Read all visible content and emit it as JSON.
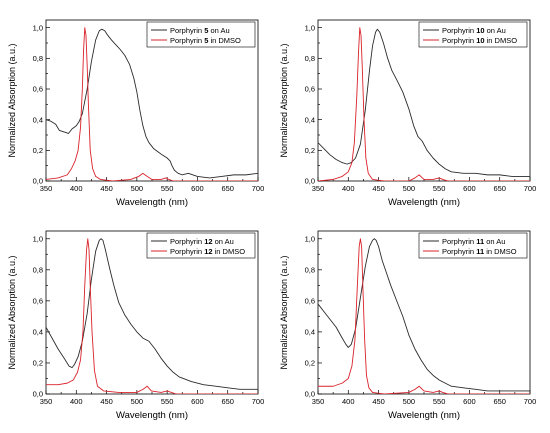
{
  "colors": {
    "au": "#2b2b2b",
    "dmso": "#d9232a",
    "axis": "#000000"
  },
  "chart_data": [
    {
      "type": "line",
      "xlabel": "Wavelength (nm)",
      "ylabel": "Normalized Absorption (a.u.)",
      "xlim": [
        350,
        700
      ],
      "ylim": [
        0.0,
        1.05
      ],
      "xticks": [
        "350",
        "400",
        "450",
        "500",
        "550",
        "600",
        "650",
        "700"
      ],
      "yticks": [
        "0,0",
        "0,2",
        "0,4",
        "0,6",
        "0,8",
        "1,0"
      ],
      "grid": false,
      "legend_position": "top-right",
      "series": [
        {
          "name": "Porphyrin 5 on Au",
          "legend_prefix": "Porphyrin ",
          "legend_number": "5",
          "legend_suffix": " on Au",
          "color": "#2b2b2b",
          "x": [
            350,
            358,
            366,
            372,
            380,
            387,
            393,
            400,
            405,
            410,
            418,
            425,
            432,
            438,
            442,
            447,
            452,
            458,
            465,
            472,
            480,
            488,
            495,
            500,
            505,
            510,
            515,
            520,
            528,
            535,
            542,
            550,
            555,
            558,
            562,
            568,
            575,
            585,
            600,
            620,
            640,
            660,
            680,
            700
          ],
          "y": [
            0.4,
            0.39,
            0.37,
            0.33,
            0.32,
            0.31,
            0.34,
            0.36,
            0.39,
            0.44,
            0.6,
            0.78,
            0.92,
            0.98,
            0.99,
            0.98,
            0.95,
            0.92,
            0.89,
            0.86,
            0.82,
            0.76,
            0.67,
            0.58,
            0.46,
            0.36,
            0.29,
            0.25,
            0.21,
            0.19,
            0.17,
            0.15,
            0.13,
            0.1,
            0.07,
            0.05,
            0.04,
            0.05,
            0.03,
            0.02,
            0.03,
            0.04,
            0.04,
            0.05
          ]
        },
        {
          "name": "Porphyrin 5 in DMSO",
          "legend_prefix": "Porphyrin ",
          "legend_number": "5",
          "legend_suffix": " in DMSO",
          "color": "#d9232a",
          "x": [
            350,
            370,
            385,
            392,
            398,
            403,
            407,
            410,
            412,
            414,
            416,
            418,
            420,
            423,
            427,
            432,
            440,
            460,
            490,
            503,
            510,
            517,
            525,
            540,
            548,
            553,
            560,
            580,
            620,
            700
          ],
          "y": [
            0.01,
            0.02,
            0.04,
            0.08,
            0.13,
            0.2,
            0.35,
            0.6,
            0.85,
            1.0,
            0.95,
            0.75,
            0.5,
            0.2,
            0.08,
            0.03,
            0.01,
            0.0,
            0.01,
            0.03,
            0.05,
            0.03,
            0.01,
            0.01,
            0.02,
            0.01,
            0.0,
            0.0,
            0.0,
            0.0
          ]
        }
      ]
    },
    {
      "type": "line",
      "xlabel": "Wavelength (nm)",
      "ylabel": "Normalized Absorption (a.u.)",
      "xlim": [
        350,
        700
      ],
      "ylim": [
        0.0,
        1.05
      ],
      "xticks": [
        "350",
        "400",
        "450",
        "500",
        "550",
        "600",
        "650",
        "700"
      ],
      "yticks": [
        "0,0",
        "0,2",
        "0,4",
        "0,6",
        "0,8",
        "1,0"
      ],
      "grid": false,
      "legend_position": "top-right",
      "series": [
        {
          "name": "Porphyrin 10 on Au",
          "legend_prefix": "Porphyrin ",
          "legend_number": "10",
          "legend_suffix": " on Au",
          "color": "#2b2b2b",
          "x": [
            350,
            360,
            370,
            380,
            390,
            398,
            405,
            412,
            420,
            428,
            435,
            440,
            445,
            448,
            452,
            458,
            465,
            472,
            480,
            490,
            500,
            508,
            515,
            522,
            530,
            540,
            550,
            560,
            570,
            590,
            610,
            630,
            650,
            670,
            700
          ],
          "y": [
            0.25,
            0.21,
            0.17,
            0.14,
            0.12,
            0.11,
            0.12,
            0.15,
            0.24,
            0.46,
            0.72,
            0.88,
            0.97,
            0.99,
            0.97,
            0.9,
            0.8,
            0.72,
            0.66,
            0.58,
            0.47,
            0.36,
            0.29,
            0.26,
            0.2,
            0.15,
            0.11,
            0.08,
            0.06,
            0.05,
            0.05,
            0.04,
            0.04,
            0.03,
            0.03
          ]
        },
        {
          "name": "Porphyrin 10 in DMSO",
          "legend_prefix": "Porphyrin ",
          "legend_number": "10",
          "legend_suffix": " in DMSO",
          "color": "#d9232a",
          "x": [
            350,
            375,
            390,
            400,
            406,
            410,
            414,
            417,
            419,
            421,
            423,
            426,
            429,
            433,
            440,
            460,
            500,
            510,
            517,
            525,
            540,
            550,
            556,
            565,
            590,
            700
          ],
          "y": [
            0.0,
            0.01,
            0.03,
            0.06,
            0.12,
            0.25,
            0.55,
            0.85,
            1.0,
            0.95,
            0.75,
            0.4,
            0.15,
            0.05,
            0.01,
            0.0,
            0.0,
            0.02,
            0.04,
            0.01,
            0.01,
            0.02,
            0.01,
            0.0,
            0.0,
            0.0
          ]
        }
      ]
    },
    {
      "type": "line",
      "xlabel": "Wavelength (nm)",
      "ylabel": "Normalized Absorption (a.u.)",
      "xlim": [
        350,
        700
      ],
      "ylim": [
        0.0,
        1.05
      ],
      "xticks": [
        "350",
        "400",
        "450",
        "500",
        "550",
        "600",
        "650",
        "700"
      ],
      "yticks": [
        "0,0",
        "0,2",
        "0,4",
        "0,6",
        "0,8",
        "1,0"
      ],
      "grid": false,
      "legend_position": "top-right",
      "series": [
        {
          "name": "Porphyrin 12 on Au",
          "legend_prefix": "Porphyrin ",
          "legend_number": "12",
          "legend_suffix": " on Au",
          "color": "#2b2b2b",
          "x": [
            350,
            360,
            370,
            380,
            388,
            393,
            397,
            403,
            410,
            418,
            425,
            432,
            438,
            441,
            444,
            448,
            455,
            462,
            470,
            480,
            490,
            500,
            510,
            520,
            530,
            540,
            550,
            560,
            570,
            590,
            610,
            630,
            650,
            670,
            700
          ],
          "y": [
            0.43,
            0.36,
            0.29,
            0.23,
            0.18,
            0.17,
            0.19,
            0.24,
            0.34,
            0.52,
            0.74,
            0.92,
            0.99,
            1.0,
            0.99,
            0.93,
            0.81,
            0.7,
            0.59,
            0.51,
            0.45,
            0.4,
            0.36,
            0.34,
            0.29,
            0.23,
            0.18,
            0.14,
            0.11,
            0.08,
            0.06,
            0.05,
            0.04,
            0.03,
            0.03
          ]
        },
        {
          "name": "Porphyrin 12 in DMSO",
          "legend_prefix": "Porphyrin ",
          "legend_number": "12",
          "legend_suffix": " in DMSO",
          "color": "#d9232a",
          "x": [
            350,
            370,
            385,
            395,
            402,
            407,
            411,
            414,
            417,
            419,
            421,
            423,
            426,
            430,
            435,
            445,
            470,
            500,
            510,
            517,
            524,
            540,
            550,
            557,
            565,
            590,
            700
          ],
          "y": [
            0.06,
            0.06,
            0.07,
            0.09,
            0.14,
            0.22,
            0.4,
            0.7,
            0.93,
            1.0,
            0.93,
            0.7,
            0.4,
            0.15,
            0.05,
            0.02,
            0.01,
            0.01,
            0.03,
            0.05,
            0.02,
            0.01,
            0.02,
            0.01,
            0.0,
            0.0,
            0.0
          ]
        }
      ]
    },
    {
      "type": "line",
      "xlabel": "Wavelength (nm)",
      "ylabel": "Normalized Absorption (a.u.)",
      "xlim": [
        350,
        700
      ],
      "ylim": [
        0.0,
        1.05
      ],
      "xticks": [
        "350",
        "400",
        "450",
        "500",
        "550",
        "600",
        "650",
        "700"
      ],
      "yticks": [
        "0,0",
        "0,2",
        "0,4",
        "0,6",
        "0,8",
        "1,0"
      ],
      "grid": false,
      "legend_position": "top-right",
      "series": [
        {
          "name": "Porphyrin 11 on Au",
          "legend_prefix": "Porphyrin ",
          "legend_number": "11",
          "legend_suffix": " on Au",
          "color": "#2b2b2b",
          "x": [
            350,
            360,
            370,
            380,
            390,
            396,
            400,
            405,
            412,
            420,
            428,
            435,
            440,
            443,
            446,
            450,
            456,
            463,
            470,
            480,
            490,
            500,
            510,
            520,
            530,
            540,
            550,
            560,
            570,
            590,
            610,
            630,
            650,
            670,
            700
          ],
          "y": [
            0.58,
            0.53,
            0.48,
            0.43,
            0.36,
            0.32,
            0.3,
            0.32,
            0.42,
            0.62,
            0.82,
            0.95,
            0.99,
            1.0,
            0.99,
            0.95,
            0.86,
            0.78,
            0.7,
            0.6,
            0.5,
            0.38,
            0.29,
            0.22,
            0.16,
            0.12,
            0.09,
            0.07,
            0.05,
            0.04,
            0.03,
            0.02,
            0.02,
            0.02,
            0.02
          ]
        },
        {
          "name": "Porphyrin 11 in DMSO",
          "legend_prefix": "Porphyrin ",
          "legend_number": "11",
          "legend_suffix": " in DMSO",
          "color": "#d9232a",
          "x": [
            350,
            375,
            390,
            400,
            406,
            411,
            415,
            418,
            420,
            422,
            424,
            427,
            430,
            434,
            440,
            460,
            500,
            510,
            517,
            525,
            540,
            550,
            556,
            565,
            590,
            700
          ],
          "y": [
            0.05,
            0.05,
            0.07,
            0.1,
            0.18,
            0.35,
            0.7,
            0.95,
            1.0,
            0.95,
            0.7,
            0.35,
            0.12,
            0.04,
            0.01,
            0.0,
            0.01,
            0.03,
            0.05,
            0.02,
            0.01,
            0.02,
            0.01,
            0.0,
            0.0,
            0.0
          ]
        }
      ]
    }
  ]
}
